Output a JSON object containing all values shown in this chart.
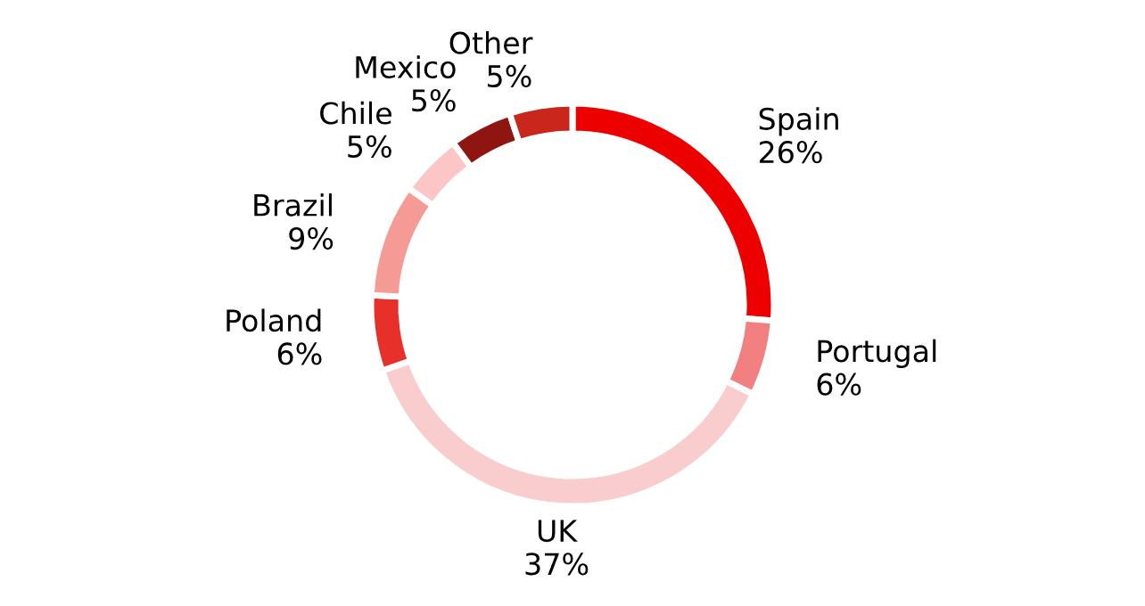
{
  "chart_data": {
    "type": "donut",
    "categories": [
      "Spain",
      "Portugal",
      "UK",
      "Poland",
      "Brazil",
      "Chile",
      "Mexico",
      "Other"
    ],
    "values": [
      26,
      6,
      37,
      6,
      9,
      5,
      5,
      5
    ],
    "colors": [
      "#ec0000",
      "#f28080",
      "#f9cdcd",
      "#e8302a",
      "#f59a94",
      "#fcc6c6",
      "#8e1510",
      "#c9261c"
    ],
    "value_labels": [
      "26%",
      "6%",
      "37%",
      "6%",
      "9%",
      "5%",
      "5%",
      "5%"
    ],
    "legend": false
  }
}
